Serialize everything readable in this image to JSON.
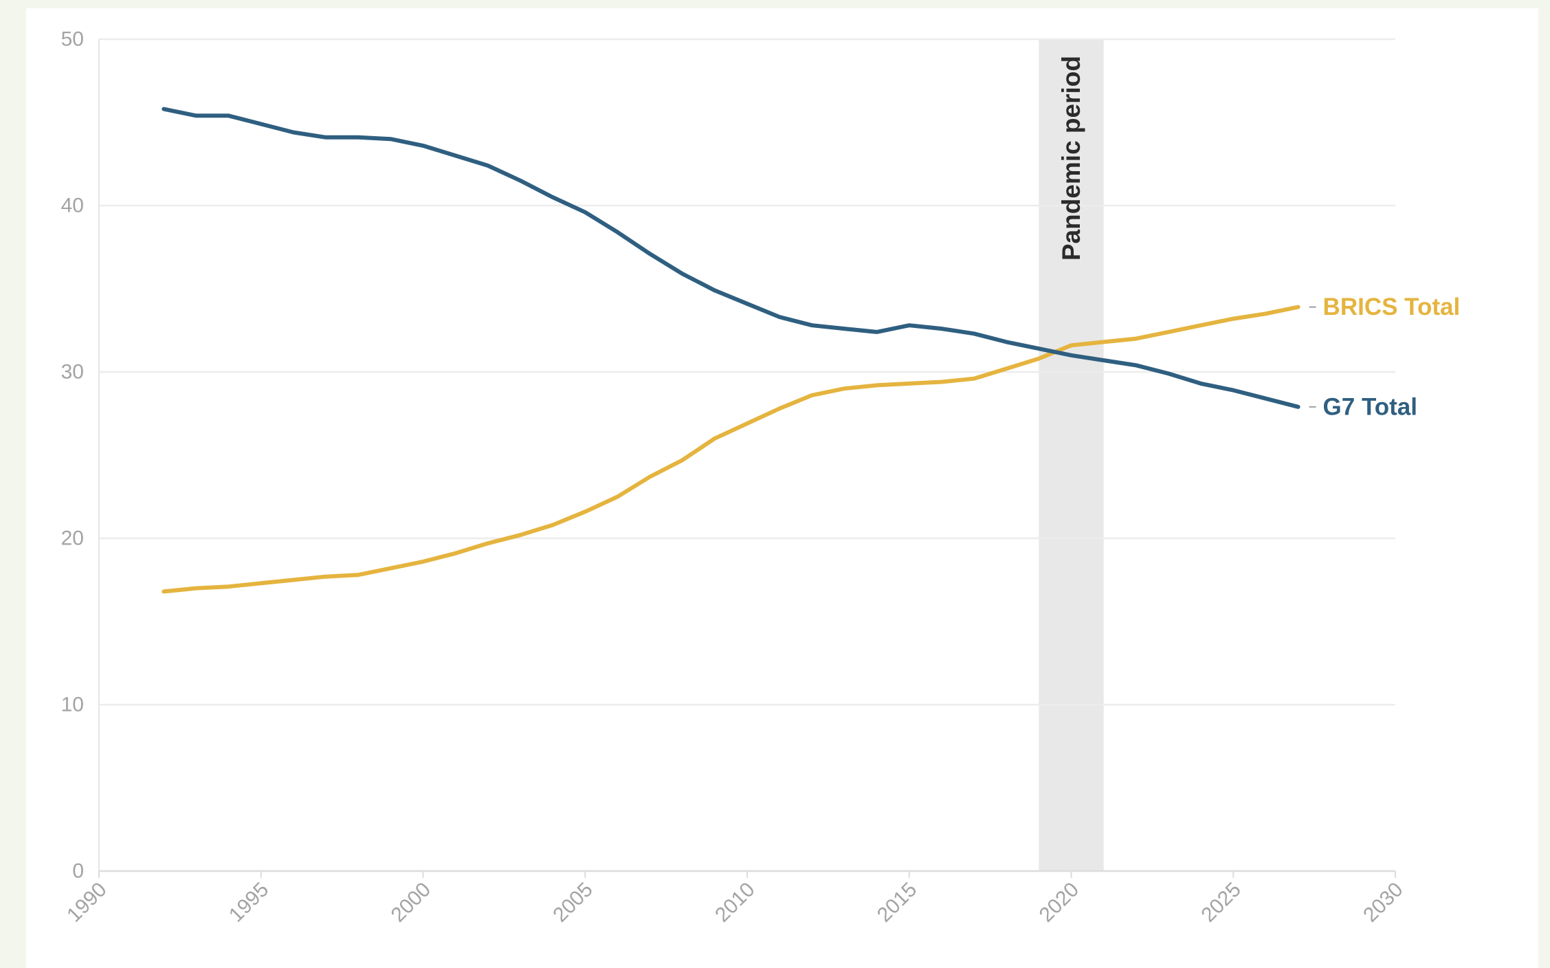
{
  "chart_data": {
    "type": "line",
    "title": "",
    "xlabel": "",
    "ylabel": "",
    "xlim": [
      1990,
      2030
    ],
    "ylim": [
      0,
      50
    ],
    "x_ticks": [
      "1990",
      "1995",
      "2000",
      "2005",
      "2010",
      "2015",
      "2020",
      "2025",
      "2030"
    ],
    "y_ticks": [
      "0",
      "10",
      "20",
      "30",
      "40",
      "50"
    ],
    "grid": true,
    "legend": "direct labels at line ends (right)",
    "shaded_band": {
      "label": "Pandemic period",
      "x_range": [
        2019,
        2021
      ],
      "color": "#e8e8e8"
    },
    "series": [
      {
        "name": "BRICS Total",
        "color": "#e5b43f",
        "x": [
          1992,
          1993,
          1994,
          1995,
          1996,
          1997,
          1998,
          1999,
          2000,
          2001,
          2002,
          2003,
          2004,
          2005,
          2006,
          2007,
          2008,
          2009,
          2010,
          2011,
          2012,
          2013,
          2014,
          2015,
          2016,
          2017,
          2018,
          2019,
          2020,
          2021,
          2022,
          2023,
          2024,
          2025,
          2026,
          2027
        ],
        "values": [
          16.8,
          17.0,
          17.1,
          17.3,
          17.5,
          17.7,
          17.8,
          18.2,
          18.6,
          19.1,
          19.7,
          20.2,
          20.8,
          21.6,
          22.5,
          23.7,
          24.7,
          26.0,
          26.9,
          27.8,
          28.6,
          29.0,
          29.2,
          29.3,
          29.4,
          29.6,
          30.2,
          30.8,
          31.6,
          31.8,
          32.0,
          32.4,
          32.8,
          33.2,
          33.5,
          33.9
        ]
      },
      {
        "name": "G7 Total",
        "color": "#2f5f80",
        "x": [
          1992,
          1993,
          1994,
          1995,
          1996,
          1997,
          1998,
          1999,
          2000,
          2001,
          2002,
          2003,
          2004,
          2005,
          2006,
          2007,
          2008,
          2009,
          2010,
          2011,
          2012,
          2013,
          2014,
          2015,
          2016,
          2017,
          2018,
          2019,
          2020,
          2021,
          2022,
          2023,
          2024,
          2025,
          2026,
          2027
        ],
        "values": [
          45.8,
          45.4,
          45.4,
          44.9,
          44.4,
          44.1,
          44.1,
          44.0,
          43.6,
          43.0,
          42.4,
          41.5,
          40.5,
          39.6,
          38.4,
          37.1,
          35.9,
          34.9,
          34.1,
          33.3,
          32.8,
          32.6,
          32.4,
          32.8,
          32.6,
          32.3,
          31.8,
          31.4,
          31.0,
          30.7,
          30.4,
          29.9,
          29.3,
          28.9,
          28.4,
          27.9
        ]
      }
    ]
  }
}
